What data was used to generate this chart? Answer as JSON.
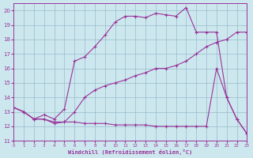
{
  "xlabel": "Windchill (Refroidissement éolien,°C)",
  "bg_color": "#cce8ee",
  "line_color": "#993399",
  "grid_color": "#99bbcc",
  "xlim": [
    0,
    23
  ],
  "ylim": [
    11,
    20.5
  ],
  "yticks": [
    11,
    12,
    13,
    14,
    15,
    16,
    17,
    18,
    19,
    20
  ],
  "xticks": [
    0,
    1,
    2,
    3,
    4,
    5,
    6,
    7,
    8,
    9,
    10,
    11,
    12,
    13,
    14,
    15,
    16,
    17,
    18,
    19,
    20,
    21,
    22,
    23
  ],
  "series1_x": [
    0,
    1,
    2,
    3,
    4,
    5,
    6,
    7,
    8,
    9,
    10,
    11,
    12,
    13,
    14,
    15,
    16,
    17,
    18,
    19,
    20,
    21,
    22,
    23
  ],
  "series1_y": [
    13.3,
    13.0,
    12.5,
    12.5,
    12.2,
    12.3,
    13.0,
    14.0,
    14.5,
    14.8,
    15.0,
    15.2,
    15.5,
    15.7,
    16.0,
    16.0,
    16.2,
    16.5,
    17.0,
    17.5,
    17.8,
    18.0,
    18.5,
    18.5
  ],
  "series2_x": [
    0,
    1,
    2,
    3,
    4,
    5,
    6,
    7,
    8,
    9,
    10,
    11,
    12,
    13,
    14,
    15,
    16,
    17,
    18,
    19,
    20,
    21,
    22,
    23
  ],
  "series2_y": [
    13.3,
    13.0,
    12.5,
    12.8,
    12.5,
    13.2,
    16.5,
    16.8,
    17.5,
    18.3,
    19.2,
    19.6,
    19.6,
    19.5,
    19.8,
    19.7,
    19.6,
    20.2,
    18.5,
    18.5,
    18.5,
    14.0,
    12.5,
    11.5
  ],
  "series3_x": [
    0,
    1,
    2,
    3,
    4,
    5,
    6,
    7,
    8,
    9,
    10,
    11,
    12,
    13,
    14,
    15,
    16,
    17,
    18,
    19,
    20,
    21,
    22,
    23
  ],
  "series3_y": [
    13.3,
    13.0,
    12.5,
    12.5,
    12.3,
    12.3,
    12.3,
    12.2,
    12.2,
    12.2,
    12.1,
    12.1,
    12.1,
    12.1,
    12.0,
    12.0,
    12.0,
    12.0,
    12.0,
    12.0,
    16.0,
    14.0,
    12.5,
    11.5
  ]
}
